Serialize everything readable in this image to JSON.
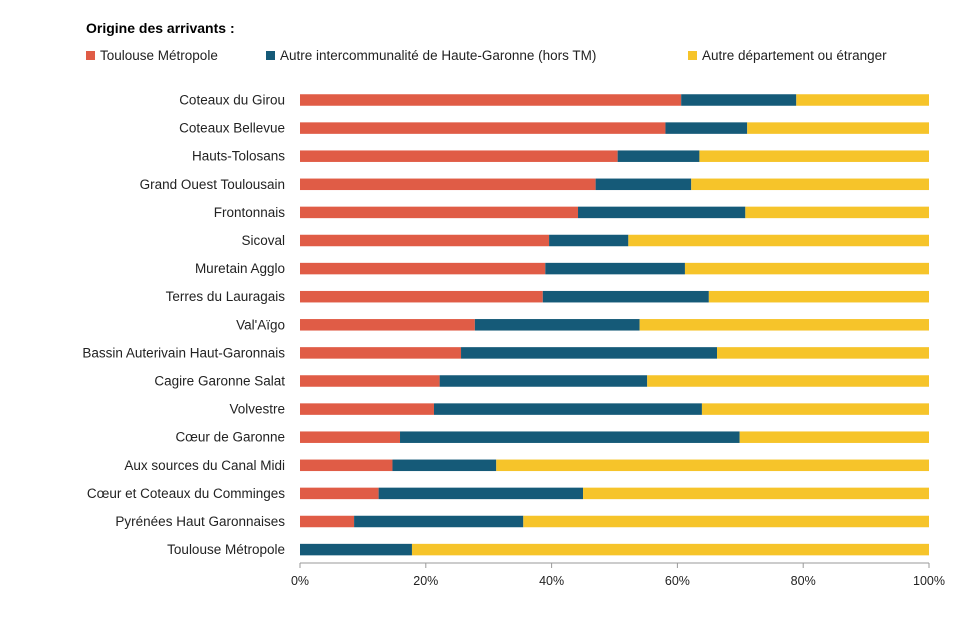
{
  "chart_data": {
    "type": "bar",
    "orientation": "horizontal",
    "stacked": true,
    "legend_title": "Origine des arrivants :",
    "legend_position": "top-left",
    "grid": false,
    "xlim": [
      0,
      100
    ],
    "x_ticks": [
      "0%",
      "20%",
      "40%",
      "60%",
      "80%",
      "100%"
    ],
    "categories": [
      "Coteaux du Girou",
      "Coteaux Bellevue",
      "Hauts-Tolosans",
      "Grand Ouest Toulousain",
      "Frontonnais",
      "Sicoval",
      "Muretain Agglo",
      "Terres du Lauragais",
      "Val'Aïgo",
      "Bassin Auterivain Haut-Garonnais",
      "Cagire Garonne Salat",
      "Volvestre",
      "Cœur de Garonne",
      "Aux sources du Canal Midi",
      "Cœur et Coteaux du Comminges",
      "Pyrénées Haut Garonnaises",
      "Toulouse Métropole"
    ],
    "series": [
      {
        "name": "Toulouse Métropole",
        "color": "#e05c46",
        "values": [
          60.6,
          58.1,
          50.5,
          47.0,
          44.2,
          39.6,
          39.0,
          38.6,
          27.8,
          25.6,
          22.2,
          21.3,
          15.9,
          14.7,
          12.5,
          8.6,
          0
        ]
      },
      {
        "name": "Autre intercommunalité de Haute-Garonne (hors TM)",
        "color": "#155a78",
        "values": [
          18.3,
          13.0,
          13.0,
          15.2,
          26.6,
          12.6,
          22.2,
          26.4,
          26.2,
          40.7,
          33.0,
          42.6,
          54.0,
          16.5,
          32.5,
          26.9,
          17.8
        ]
      },
      {
        "name": "Autre département ou étranger",
        "color": "#f6c42a",
        "values": [
          21.1,
          28.9,
          36.5,
          37.8,
          29.2,
          47.8,
          38.8,
          35.0,
          46.0,
          33.7,
          44.8,
          36.1,
          30.1,
          68.8,
          55.0,
          64.5,
          82.2
        ]
      }
    ]
  }
}
